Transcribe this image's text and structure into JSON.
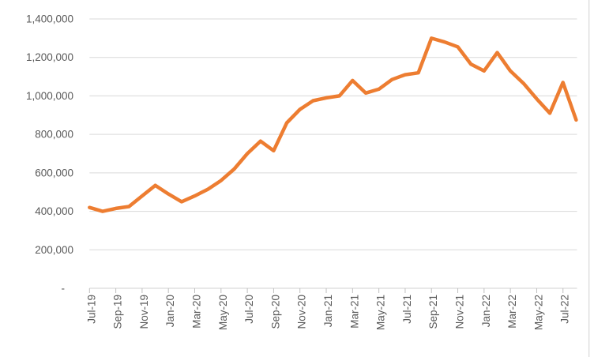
{
  "chart_data": {
    "type": "line",
    "title": "",
    "xlabel": "",
    "ylabel": "",
    "x": [
      "Jul-19",
      "Aug-19",
      "Sep-19",
      "Oct-19",
      "Nov-19",
      "Dec-19",
      "Jan-20",
      "Feb-20",
      "Mar-20",
      "Apr-20",
      "May-20",
      "Jun-20",
      "Jul-20",
      "Aug-20",
      "Sep-20",
      "Oct-20",
      "Nov-20",
      "Dec-20",
      "Jan-21",
      "Feb-21",
      "Mar-21",
      "Apr-21",
      "May-21",
      "Jun-21",
      "Jul-21",
      "Aug-21",
      "Sep-21",
      "Oct-21",
      "Nov-21",
      "Dec-21",
      "Jan-22",
      "Feb-22",
      "Mar-22",
      "Apr-22",
      "May-22",
      "Jun-22",
      "Jul-22",
      "Aug-22"
    ],
    "values": [
      420000,
      400000,
      415000,
      425000,
      480000,
      535000,
      490000,
      450000,
      480000,
      515000,
      560000,
      620000,
      700000,
      765000,
      715000,
      860000,
      930000,
      975000,
      990000,
      1000000,
      1080000,
      1015000,
      1035000,
      1085000,
      1110000,
      1120000,
      1300000,
      1280000,
      1255000,
      1165000,
      1130000,
      1225000,
      1130000,
      1065000,
      985000,
      910000,
      1070000,
      875000
    ],
    "x_tick_labels": [
      "Jul-19",
      "Sep-19",
      "Nov-19",
      "Jan-20",
      "Mar-20",
      "May-20",
      "Jul-20",
      "Sep-20",
      "Nov-20",
      "Jan-21",
      "Mar-21",
      "May-21",
      "Jul-21",
      "Sep-21",
      "Nov-21",
      "Jan-22",
      "Mar-22",
      "May-22",
      "Jul-22"
    ],
    "x_tick_interval": 2,
    "y_tick_labels": [
      "1,400,000",
      "1,200,000",
      "1,000,000",
      "800,000",
      "600,000",
      "400,000",
      "200,000",
      "-"
    ],
    "y_tick_values": [
      1400000,
      1200000,
      1000000,
      800000,
      600000,
      400000,
      200000,
      0
    ],
    "ylim": [
      0,
      1400000
    ],
    "grid": "horizontal",
    "legend_position": "none",
    "line_color": "#ED7D31",
    "gridline_color": "#D9D9D9",
    "axis_line_color": "#D0D0D0",
    "tick_color": "#BFBFBF",
    "label_color": "#595959",
    "border_color": "#D9D9D9",
    "background_color": "#FFFFFF"
  }
}
